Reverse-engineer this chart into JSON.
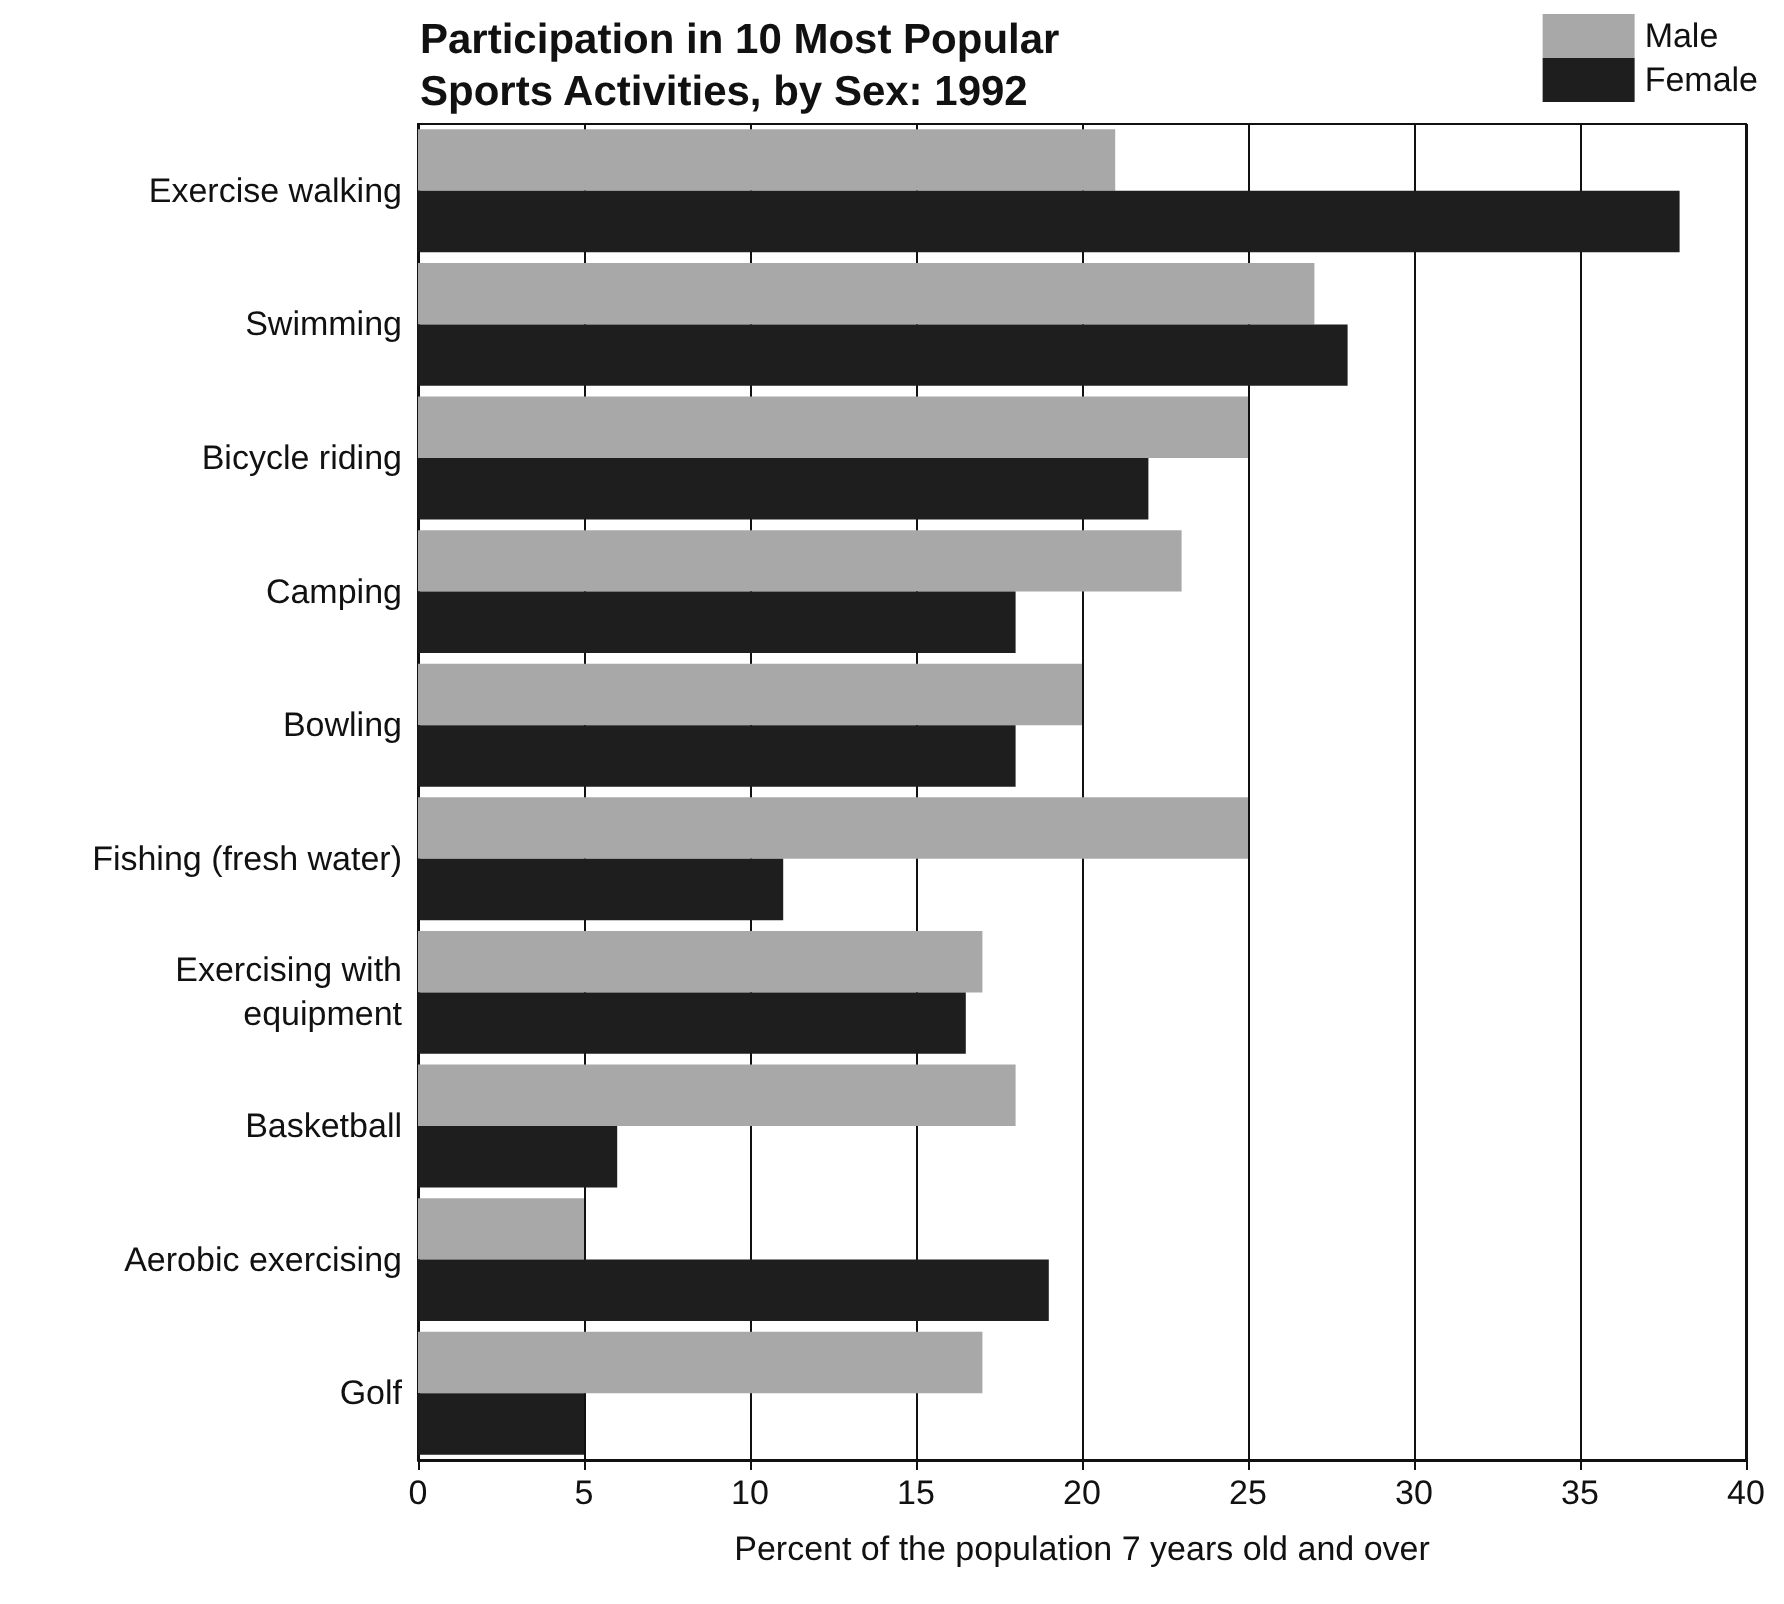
{
  "chart_data": {
    "type": "bar",
    "orientation": "horizontal",
    "title": "Participation in 10 Most Popular\nSports Activities, by Sex: 1992",
    "xlabel": "Percent of the population 7 years old and over",
    "categories": [
      "Exercise walking",
      "Swimming",
      "Bicycle riding",
      "Camping",
      "Bowling",
      "Fishing (fresh water)",
      "Exercising with\nequipment",
      "Basketball",
      "Aerobic exercising",
      "Golf"
    ],
    "series": [
      {
        "name": "Male",
        "color": "#a8a8a8",
        "values": [
          21,
          27,
          25,
          23,
          20,
          25,
          17,
          18,
          5,
          17
        ]
      },
      {
        "name": "Female",
        "color": "#1e1e1e",
        "values": [
          38,
          28,
          22,
          18,
          18,
          11,
          16.5,
          6,
          19,
          5
        ]
      }
    ],
    "xlim": [
      0,
      40
    ],
    "xticks": [
      0,
      5,
      10,
      15,
      20,
      25,
      30,
      35,
      40
    ],
    "grid": "x",
    "legend": "top right"
  }
}
